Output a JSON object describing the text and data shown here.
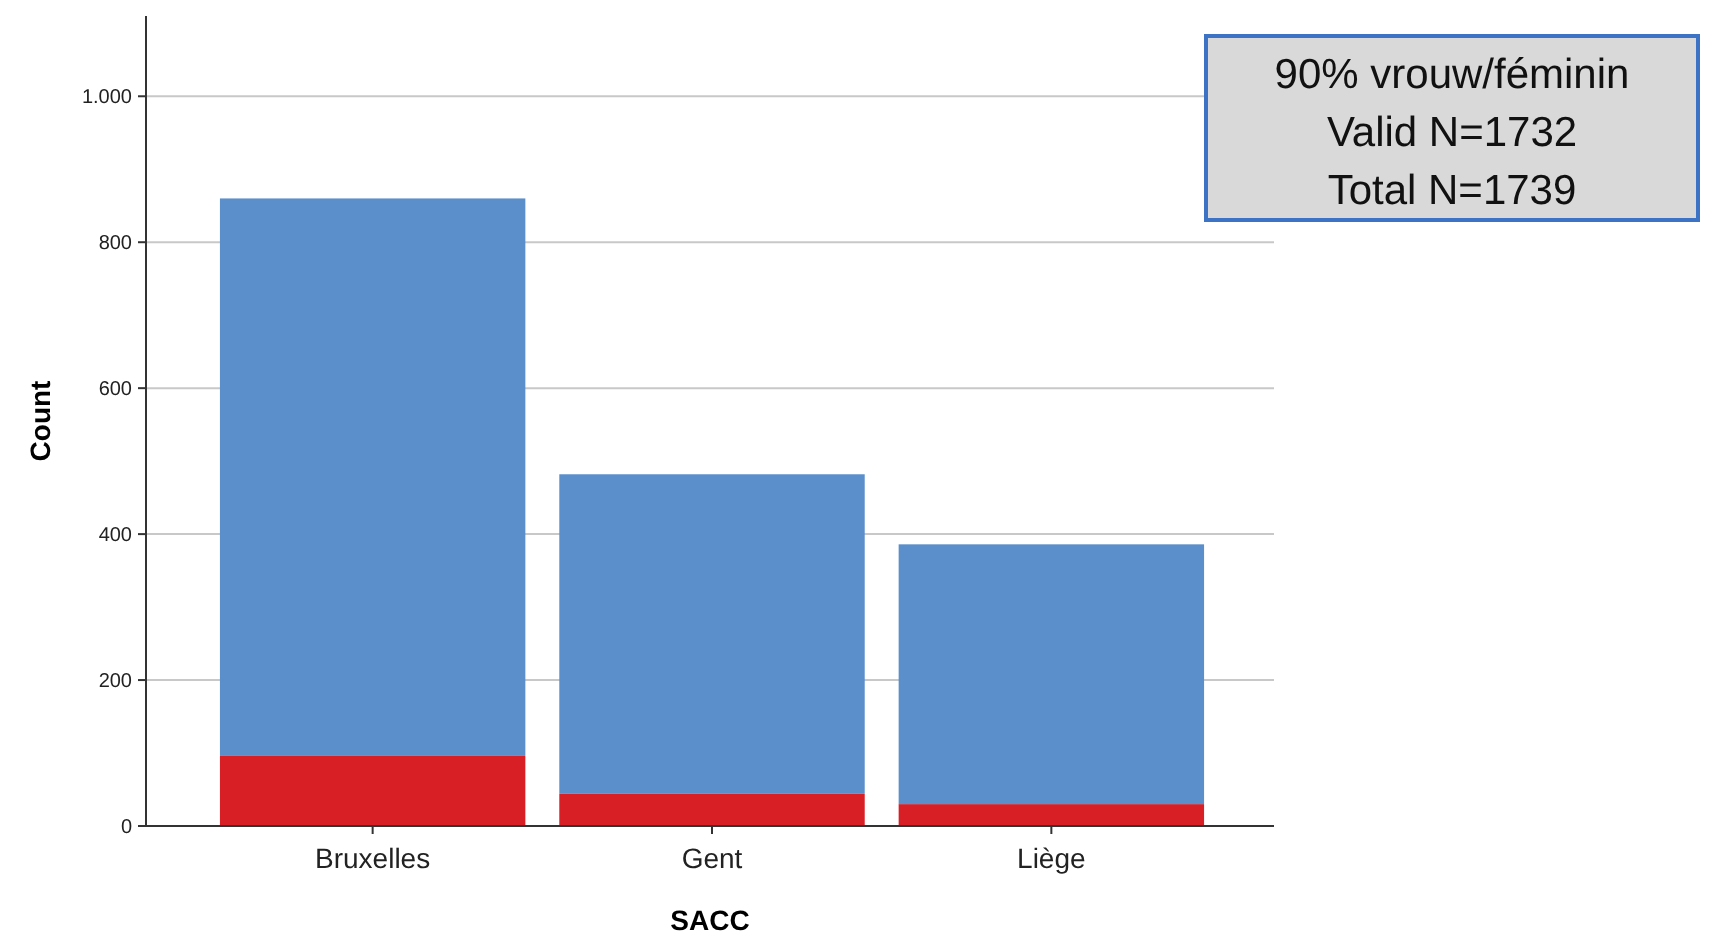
{
  "chart_data": {
    "type": "bar",
    "stacked": true,
    "categories": [
      "Bruxelles",
      "Gent",
      "Liège"
    ],
    "series": [
      {
        "color": "#d91f26",
        "values": [
          96,
          44,
          30
        ]
      },
      {
        "color": "#5a8fcb",
        "values": [
          764,
          438,
          356
        ]
      }
    ],
    "xlabel": "SACC",
    "ylabel": "Count",
    "ylim": [
      0,
      1110
    ],
    "yticks": [
      0,
      200,
      400,
      600,
      800,
      {
        "value": 1000,
        "label": "1.000"
      }
    ],
    "grid": "y",
    "annotations": [
      "90% vrouw/féminin",
      "Valid N=1732",
      "Total N=1739"
    ]
  }
}
